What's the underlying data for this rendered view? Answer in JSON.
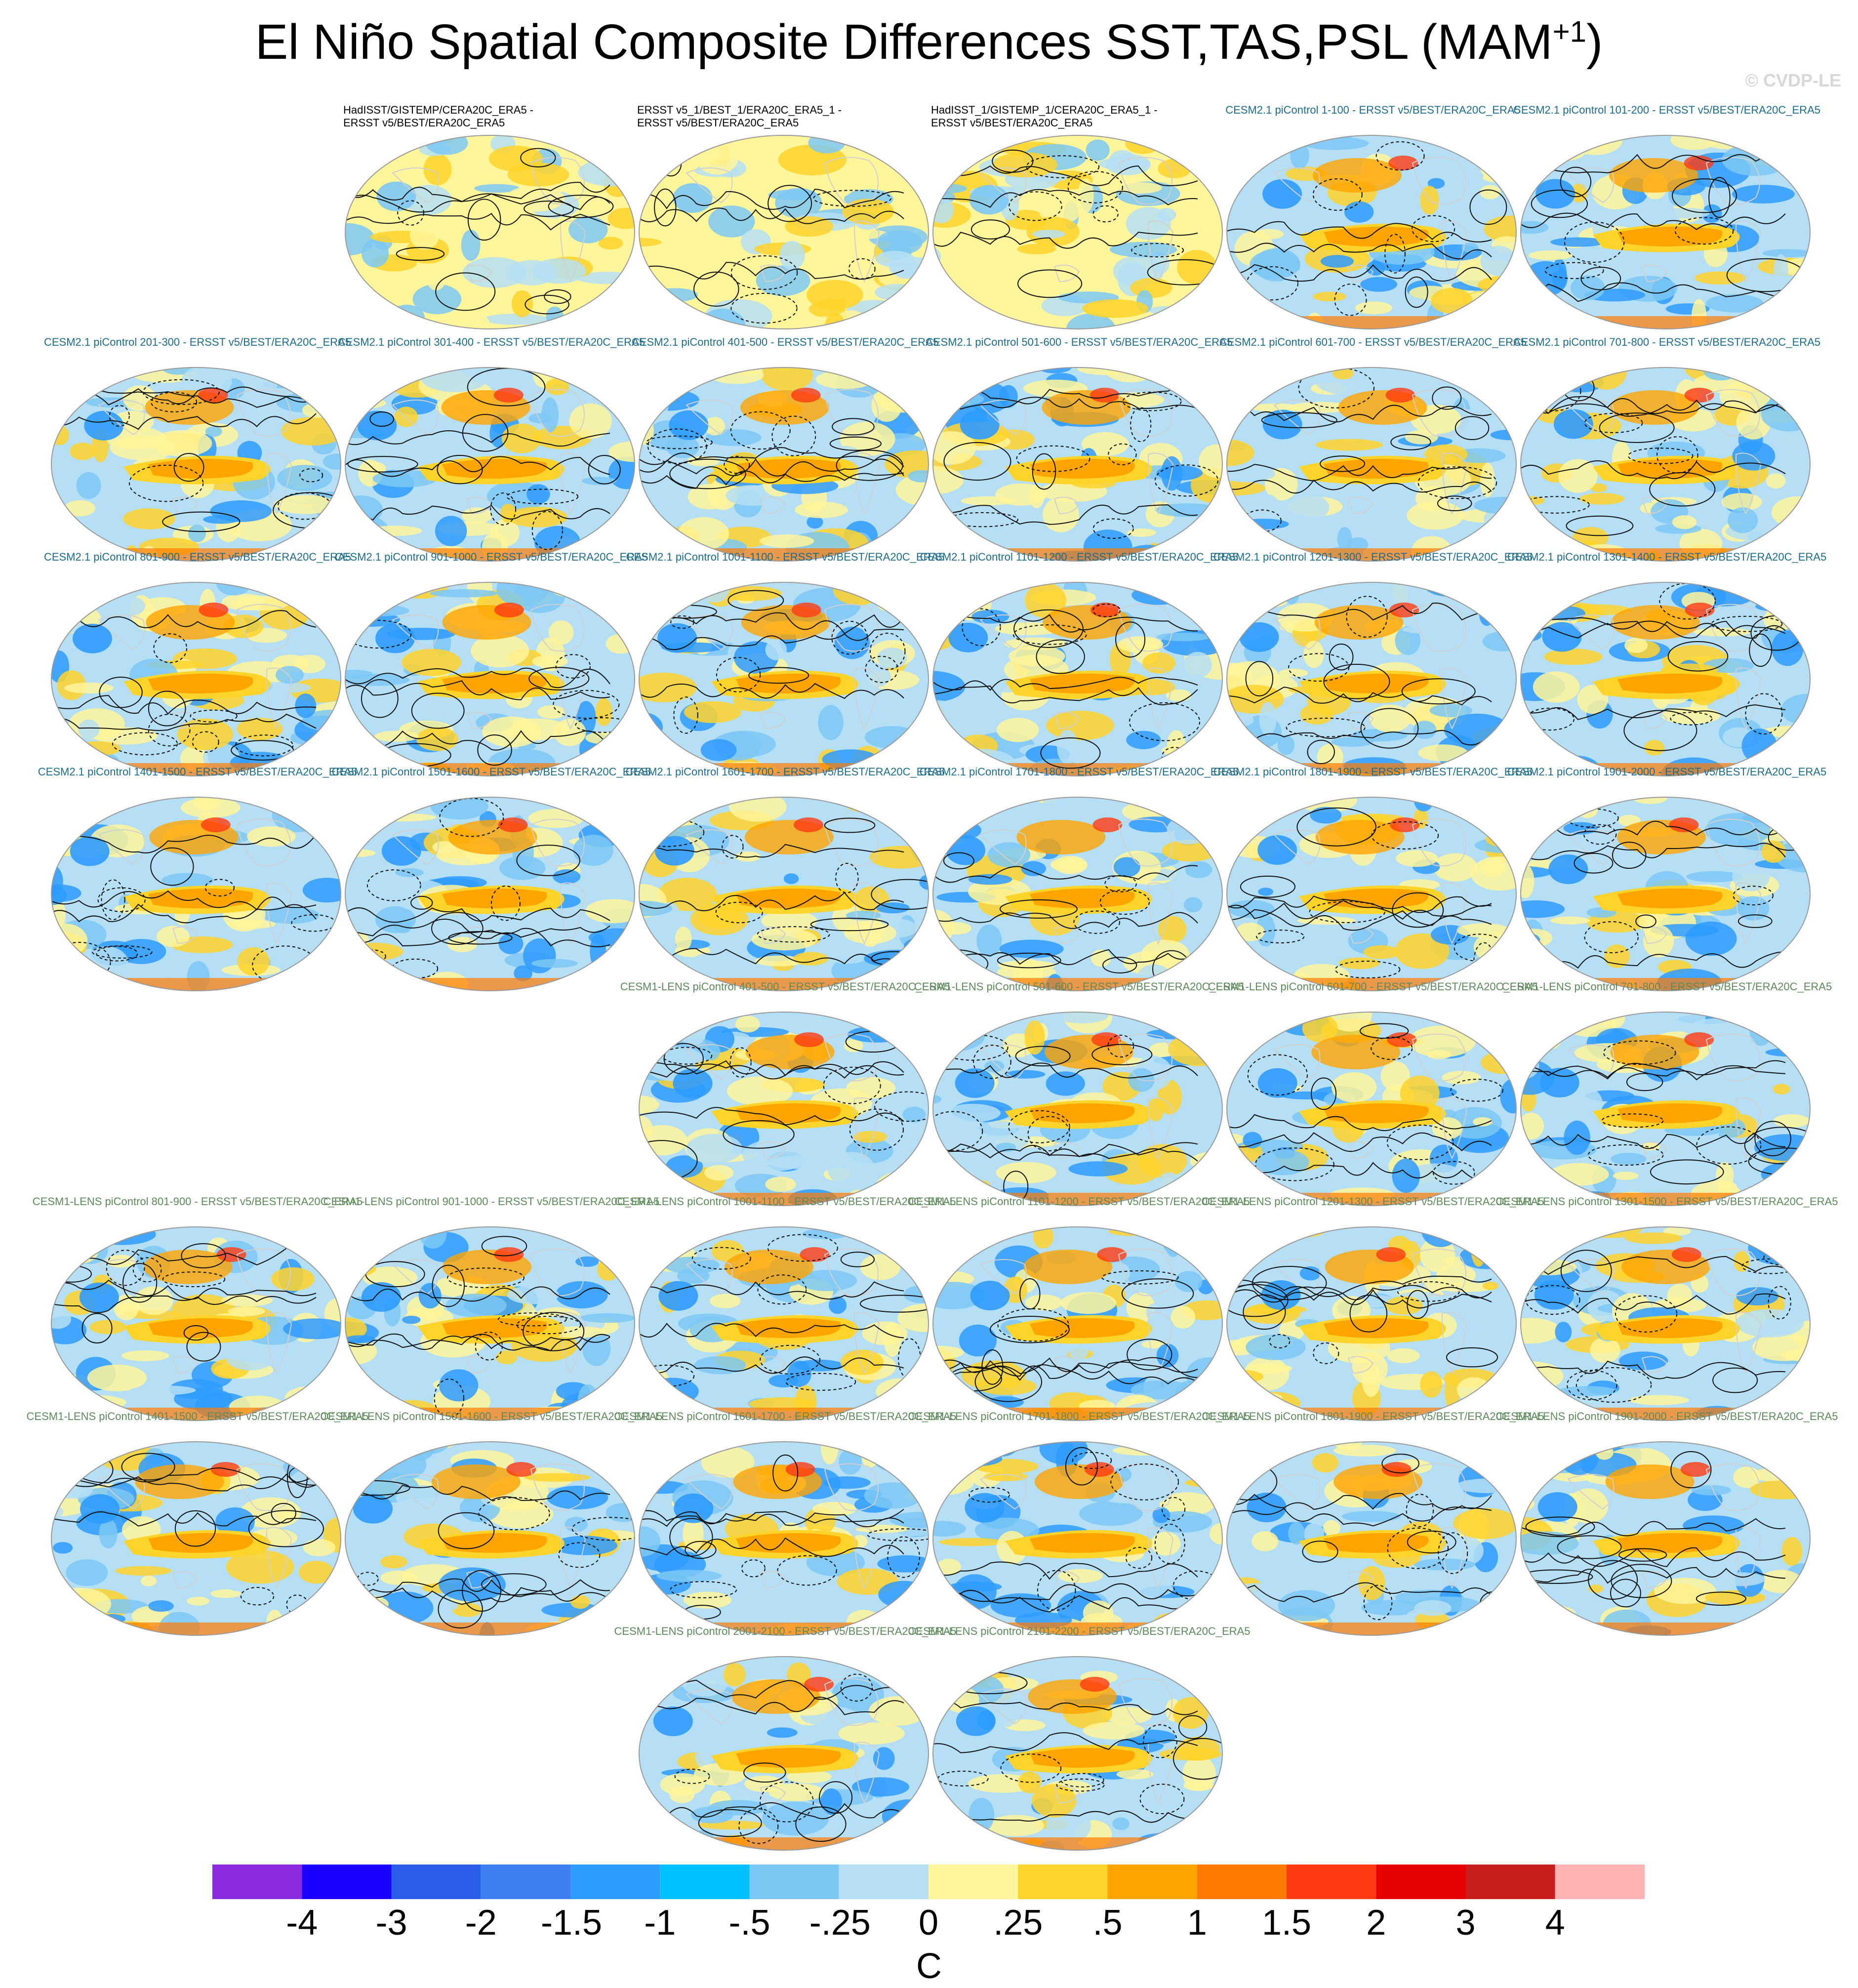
{
  "title": "El Niño Spatial Composite Differences SST,TAS,PSL (MAM",
  "title_sup": "+1",
  "title_close": ")",
  "watermark": "© CVDP-LE",
  "panels": [
    {
      "label": "HadISST/GISTEMP/CERA20C_ERA5 -\nERSST v5/BEST/ERA20C_ERA5",
      "group": "obs",
      "row": 0,
      "col": 1,
      "seed": 3
    },
    {
      "label": "ERSST v5_1/BEST_1/ERA20C_ERA5_1 -\nERSST v5/BEST/ERA20C_ERA5",
      "group": "obs",
      "row": 0,
      "col": 2,
      "seed": 5
    },
    {
      "label": "HadISST_1/GISTEMP_1/CERA20C_ERA5_1 -\nERSST v5/BEST/ERA20C_ERA5",
      "group": "obs",
      "row": 0,
      "col": 3,
      "seed": 7
    },
    {
      "label": "CESM2.1 piControl 1-100 - ERSST v5/BEST/ERA20C_ERA5",
      "group": "cesm2",
      "row": 0,
      "col": 4,
      "seed": 11
    },
    {
      "label": "CESM2.1 piControl 101-200 - ERSST v5/BEST/ERA20C_ERA5",
      "group": "cesm2",
      "row": 0,
      "col": 5,
      "seed": 13
    },
    {
      "label": "CESM2.1 piControl 201-300 - ERSST v5/BEST/ERA20C_ERA5",
      "group": "cesm2",
      "row": 1,
      "col": 0,
      "seed": 17
    },
    {
      "label": "CESM2.1 piControl 301-400 - ERSST v5/BEST/ERA20C_ERA5",
      "group": "cesm2",
      "row": 1,
      "col": 1,
      "seed": 19
    },
    {
      "label": "CESM2.1 piControl 401-500 - ERSST v5/BEST/ERA20C_ERA5",
      "group": "cesm2",
      "row": 1,
      "col": 2,
      "seed": 23
    },
    {
      "label": "CESM2.1 piControl 501-600 - ERSST v5/BEST/ERA20C_ERA5",
      "group": "cesm2",
      "row": 1,
      "col": 3,
      "seed": 29
    },
    {
      "label": "CESM2.1 piControl 601-700 - ERSST v5/BEST/ERA20C_ERA5",
      "group": "cesm2",
      "row": 1,
      "col": 4,
      "seed": 31
    },
    {
      "label": "CESM2.1 piControl 701-800 - ERSST v5/BEST/ERA20C_ERA5",
      "group": "cesm2",
      "row": 1,
      "col": 5,
      "seed": 37
    },
    {
      "label": "CESM2.1 piControl 801-900 - ERSST v5/BEST/ERA20C_ERA5",
      "group": "cesm2",
      "row": 2,
      "col": 0,
      "seed": 41
    },
    {
      "label": "CESM2.1 piControl 901-1000 - ERSST v5/BEST/ERA20C_ERA5",
      "group": "cesm2",
      "row": 2,
      "col": 1,
      "seed": 43
    },
    {
      "label": "CESM2.1 piControl 1001-1100 - ERSST v5/BEST/ERA20C_ERA5",
      "group": "cesm2",
      "row": 2,
      "col": 2,
      "seed": 47
    },
    {
      "label": "CESM2.1 piControl 1101-1200 - ERSST v5/BEST/ERA20C_ERA5",
      "group": "cesm2",
      "row": 2,
      "col": 3,
      "seed": 53
    },
    {
      "label": "CESM2.1 piControl 1201-1300 - ERSST v5/BEST/ERA20C_ERA5",
      "group": "cesm2",
      "row": 2,
      "col": 4,
      "seed": 59
    },
    {
      "label": "CESM2.1 piControl 1301-1400 - ERSST v5/BEST/ERA20C_ERA5",
      "group": "cesm2",
      "row": 2,
      "col": 5,
      "seed": 61
    },
    {
      "label": "CESM2.1 piControl 1401-1500 - ERSST v5/BEST/ERA20C_ERA5",
      "group": "cesm2",
      "row": 3,
      "col": 0,
      "seed": 67
    },
    {
      "label": "CESM2.1 piControl 1501-1600 - ERSST v5/BEST/ERA20C_ERA5",
      "group": "cesm2",
      "row": 3,
      "col": 1,
      "seed": 71
    },
    {
      "label": "CESM2.1 piControl 1601-1700 - ERSST v5/BEST/ERA20C_ERA5",
      "group": "cesm2",
      "row": 3,
      "col": 2,
      "seed": 73
    },
    {
      "label": "CESM2.1 piControl 1701-1800 - ERSST v5/BEST/ERA20C_ERA5",
      "group": "cesm2",
      "row": 3,
      "col": 3,
      "seed": 79
    },
    {
      "label": "CESM2.1 piControl 1801-1900 - ERSST v5/BEST/ERA20C_ERA5",
      "group": "cesm2",
      "row": 3,
      "col": 4,
      "seed": 83
    },
    {
      "label": "CESM2.1 piControl 1901-2000 - ERSST v5/BEST/ERA20C_ERA5",
      "group": "cesm2",
      "row": 3,
      "col": 5,
      "seed": 89
    },
    {
      "label": "CESM1-LENS piControl 401-500 - ERSST v5/BEST/ERA20C_ERA5",
      "group": "lens",
      "row": 4,
      "col": 2,
      "seed": 97
    },
    {
      "label": "CESM1-LENS piControl 501-600 - ERSST v5/BEST/ERA20C_ERA5",
      "group": "lens",
      "row": 4,
      "col": 3,
      "seed": 101
    },
    {
      "label": "CESM1-LENS piControl 601-700 - ERSST v5/BEST/ERA20C_ERA5",
      "group": "lens",
      "row": 4,
      "col": 4,
      "seed": 103
    },
    {
      "label": "CESM1-LENS piControl 701-800 - ERSST v5/BEST/ERA20C_ERA5",
      "group": "lens",
      "row": 4,
      "col": 5,
      "seed": 107
    },
    {
      "label": "CESM1-LENS piControl 801-900 - ERSST v5/BEST/ERA20C_ERA5",
      "group": "lens",
      "row": 5,
      "col": 0,
      "seed": 109
    },
    {
      "label": "CESM1-LENS piControl 901-1000 - ERSST v5/BEST/ERA20C_ERA5",
      "group": "lens",
      "row": 5,
      "col": 1,
      "seed": 113
    },
    {
      "label": "CESM1-LENS piControl 1001-1100 - ERSST v5/BEST/ERA20C_ERA5",
      "group": "lens",
      "row": 5,
      "col": 2,
      "seed": 127
    },
    {
      "label": "CESM1-LENS piControl 1101-1200 - ERSST v5/BEST/ERA20C_ERA5",
      "group": "lens",
      "row": 5,
      "col": 3,
      "seed": 131
    },
    {
      "label": "CESM1-LENS piControl 1201-1300 - ERSST v5/BEST/ERA20C_ERA5",
      "group": "lens",
      "row": 5,
      "col": 4,
      "seed": 137
    },
    {
      "label": "CESM1-LENS piControl 1301-1500 - ERSST v5/BEST/ERA20C_ERA5",
      "group": "lens",
      "row": 5,
      "col": 5,
      "seed": 139
    },
    {
      "label": "CESM1-LENS piControl 1401-1500 - ERSST v5/BEST/ERA20C_ERA5",
      "group": "lens",
      "row": 6,
      "col": 0,
      "seed": 149
    },
    {
      "label": "CESM1-LENS piControl 1501-1600 - ERSST v5/BEST/ERA20C_ERA5",
      "group": "lens",
      "row": 6,
      "col": 1,
      "seed": 151
    },
    {
      "label": "CESM1-LENS piControl 1601-1700 - ERSST v5/BEST/ERA20C_ERA5",
      "group": "lens",
      "row": 6,
      "col": 2,
      "seed": 157
    },
    {
      "label": "CESM1-LENS piControl 1701-1800 - ERSST v5/BEST/ERA20C_ERA5",
      "group": "lens",
      "row": 6,
      "col": 3,
      "seed": 163
    },
    {
      "label": "CESM1-LENS piControl 1801-1900 - ERSST v5/BEST/ERA20C_ERA5",
      "group": "lens",
      "row": 6,
      "col": 4,
      "seed": 167
    },
    {
      "label": "CESM1-LENS piControl 1901-2000 - ERSST v5/BEST/ERA20C_ERA5",
      "group": "lens",
      "row": 6,
      "col": 5,
      "seed": 173
    },
    {
      "label": "CESM1-LENS piControl 2001-2100 - ERSST v5/BEST/ERA20C_ERA5",
      "group": "lens",
      "row": 7,
      "col": 2,
      "seed": 179
    },
    {
      "label": "CESM1-LENS piControl 2101-2200 - ERSST v5/BEST/ERA20C_ERA5",
      "group": "lens",
      "row": 7,
      "col": 3,
      "seed": 181
    }
  ],
  "colorbar": {
    "colors": [
      "#8a2be2",
      "#1a00ff",
      "#2b5ee8",
      "#3d7ff0",
      "#2e9bff",
      "#00bfff",
      "#7cc8f5",
      "#b5dff5",
      "#fff59a",
      "#ffd42a",
      "#ffa400",
      "#ff7a00",
      "#ff3b12",
      "#e60000",
      "#c81e1e",
      "#ffb3b3"
    ],
    "labels": [
      "-4",
      "-3",
      "-2",
      "-1.5",
      "-1",
      "-.5",
      "-.25",
      "0",
      ".25",
      ".5",
      "1",
      "1.5",
      "2",
      "3",
      "4"
    ],
    "units": "C"
  }
}
